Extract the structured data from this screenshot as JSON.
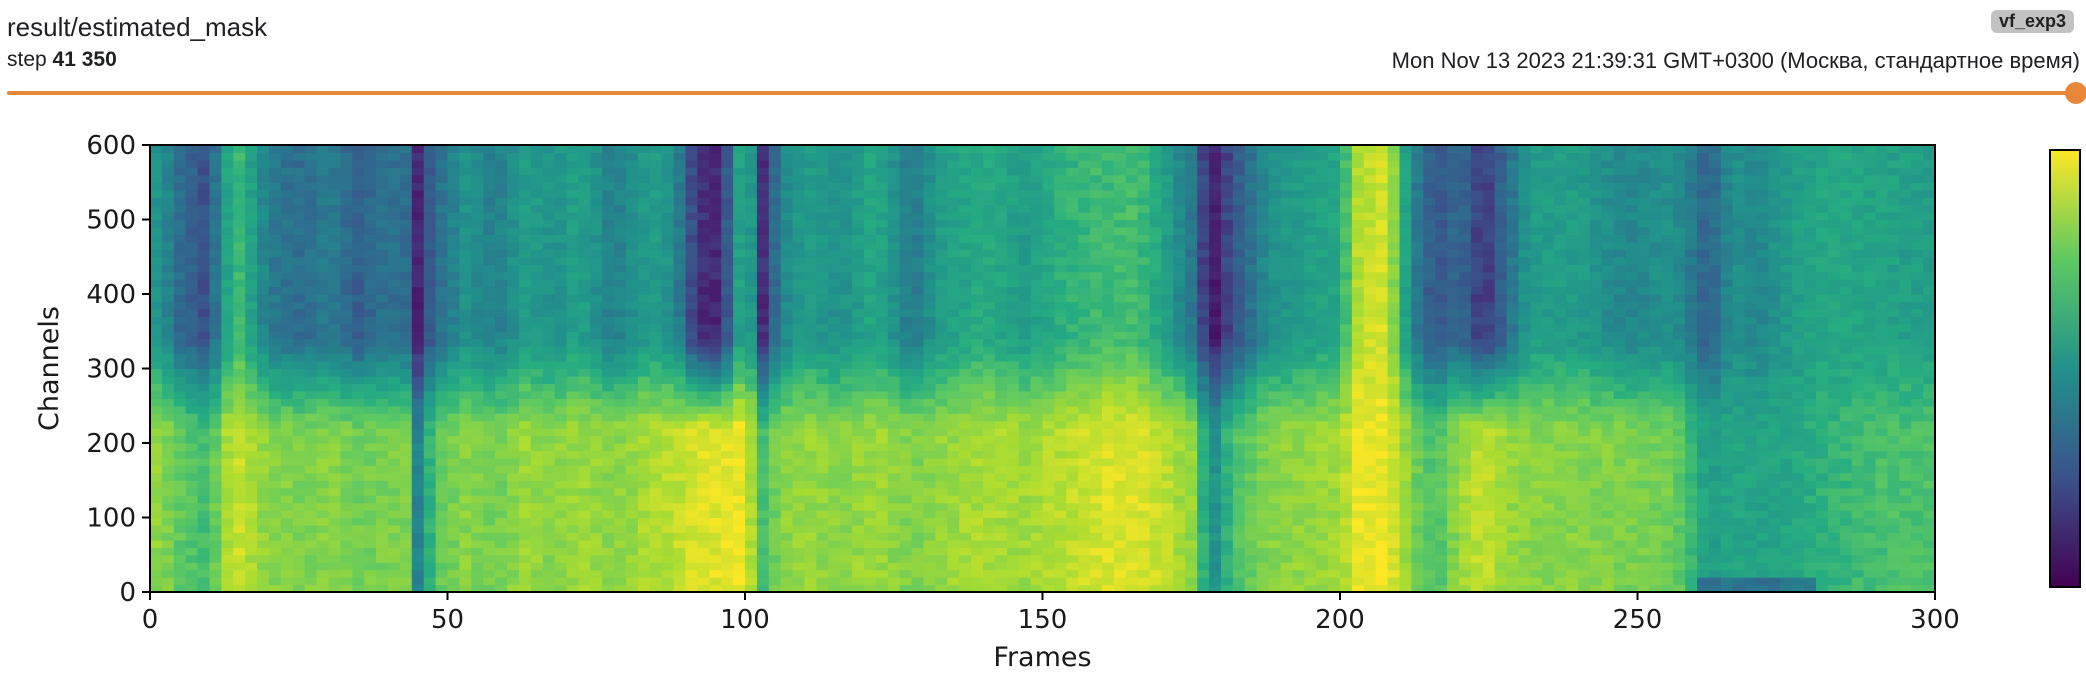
{
  "header": {
    "title": "result/estimated_mask",
    "run_tag": "vf_exp3",
    "step_prefix": "step",
    "step_value": "41 350",
    "timestamp": "Mon Nov 13 2023 21:39:31 GMT+0300 (Москва, стандартное время)"
  },
  "slider": {
    "accent_color": "#e8863a",
    "position": 1.0
  },
  "chart_data": {
    "type": "heatmap",
    "colormap": "viridis",
    "xlabel": "Frames",
    "ylabel": "Channels",
    "xlim": [
      0,
      300
    ],
    "ylim": [
      0,
      600
    ],
    "xticks": [
      0,
      50,
      100,
      150,
      200,
      250,
      300
    ],
    "yticks": [
      0,
      100,
      200,
      300,
      400,
      500,
      600
    ],
    "xtick_labels": [
      "0",
      "50",
      "100",
      "150",
      "200",
      "250",
      "300"
    ],
    "ytick_labels": [
      "0",
      "100",
      "200",
      "300",
      "400",
      "500",
      "600"
    ],
    "value_range": [
      0,
      1
    ],
    "colorbar": true,
    "column_profile": {
      "description_frames": [
        0,
        3,
        5,
        9,
        12,
        14,
        16,
        20,
        26,
        30,
        35,
        40,
        43,
        45,
        48,
        53,
        58,
        63,
        68,
        72,
        78,
        84,
        88,
        92,
        96,
        100,
        103,
        106,
        110,
        116,
        122,
        128,
        133,
        140,
        147,
        154,
        160,
        166,
        171,
        176,
        178,
        182,
        188,
        194,
        200,
        203,
        208,
        212,
        216,
        220,
        224,
        228,
        232,
        240,
        248,
        256,
        262,
        266,
        270,
        276,
        282,
        290,
        300
      ],
      "upper_level": [
        0.55,
        0.45,
        0.35,
        0.25,
        0.45,
        0.72,
        0.62,
        0.4,
        0.35,
        0.42,
        0.3,
        0.38,
        0.35,
        0.12,
        0.35,
        0.5,
        0.42,
        0.55,
        0.5,
        0.58,
        0.42,
        0.55,
        0.5,
        0.15,
        0.12,
        0.72,
        0.15,
        0.45,
        0.55,
        0.5,
        0.6,
        0.4,
        0.55,
        0.62,
        0.55,
        0.65,
        0.68,
        0.7,
        0.55,
        0.35,
        0.05,
        0.25,
        0.5,
        0.55,
        0.6,
        0.9,
        0.95,
        0.45,
        0.25,
        0.35,
        0.15,
        0.35,
        0.55,
        0.55,
        0.45,
        0.5,
        0.3,
        0.5,
        0.45,
        0.55,
        0.6,
        0.58,
        0.55
      ],
      "lower_level": [
        0.85,
        0.8,
        0.75,
        0.7,
        0.8,
        0.95,
        0.9,
        0.82,
        0.8,
        0.82,
        0.78,
        0.8,
        0.8,
        0.45,
        0.75,
        0.82,
        0.78,
        0.85,
        0.82,
        0.86,
        0.82,
        0.88,
        0.9,
        0.95,
        0.96,
        0.98,
        0.7,
        0.82,
        0.85,
        0.82,
        0.86,
        0.8,
        0.84,
        0.88,
        0.86,
        0.9,
        0.95,
        0.96,
        0.9,
        0.82,
        0.45,
        0.7,
        0.82,
        0.84,
        0.86,
        0.98,
        0.98,
        0.8,
        0.7,
        0.85,
        0.92,
        0.85,
        0.82,
        0.82,
        0.8,
        0.78,
        0.55,
        0.6,
        0.58,
        0.6,
        0.65,
        0.7,
        0.72
      ]
    }
  }
}
